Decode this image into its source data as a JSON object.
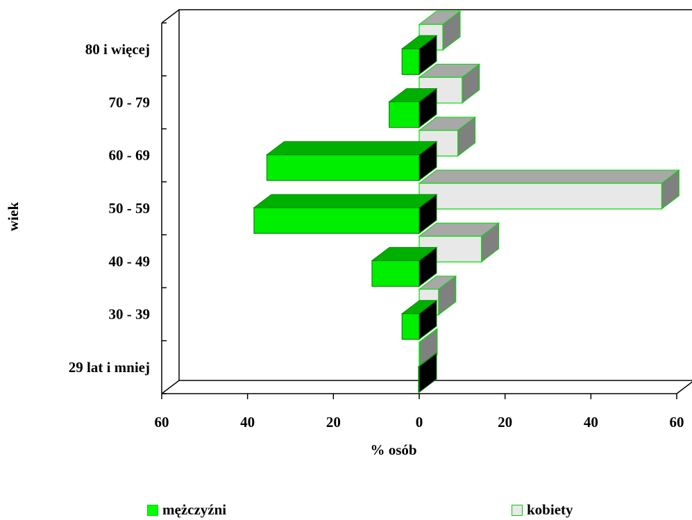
{
  "chart_data": {
    "type": "bar",
    "orientation": "horizontal",
    "style": "3d-population-pyramid",
    "categories": [
      "29 lat i mniej",
      "30 - 39",
      "40 - 49",
      "50 - 59",
      "60 - 69",
      "70 - 79",
      "80 i więcej"
    ],
    "series": [
      {
        "name": "mężczyźni",
        "side": "left",
        "color": "#00ff00",
        "values": [
          0,
          4,
          11,
          38.5,
          35.5,
          7,
          4
        ]
      },
      {
        "name": "kobiety",
        "side": "right",
        "color": "#e8e8e8",
        "values": [
          0,
          4.5,
          14.5,
          56.5,
          9,
          10,
          5.5
        ]
      }
    ],
    "x_ticks": [
      "60",
      "40",
      "20",
      "0",
      "20",
      "40",
      "60"
    ],
    "xlabel": "% osób",
    "ylabel": "wiek",
    "xlim": [
      -60,
      60
    ],
    "legend_position": "bottom"
  }
}
